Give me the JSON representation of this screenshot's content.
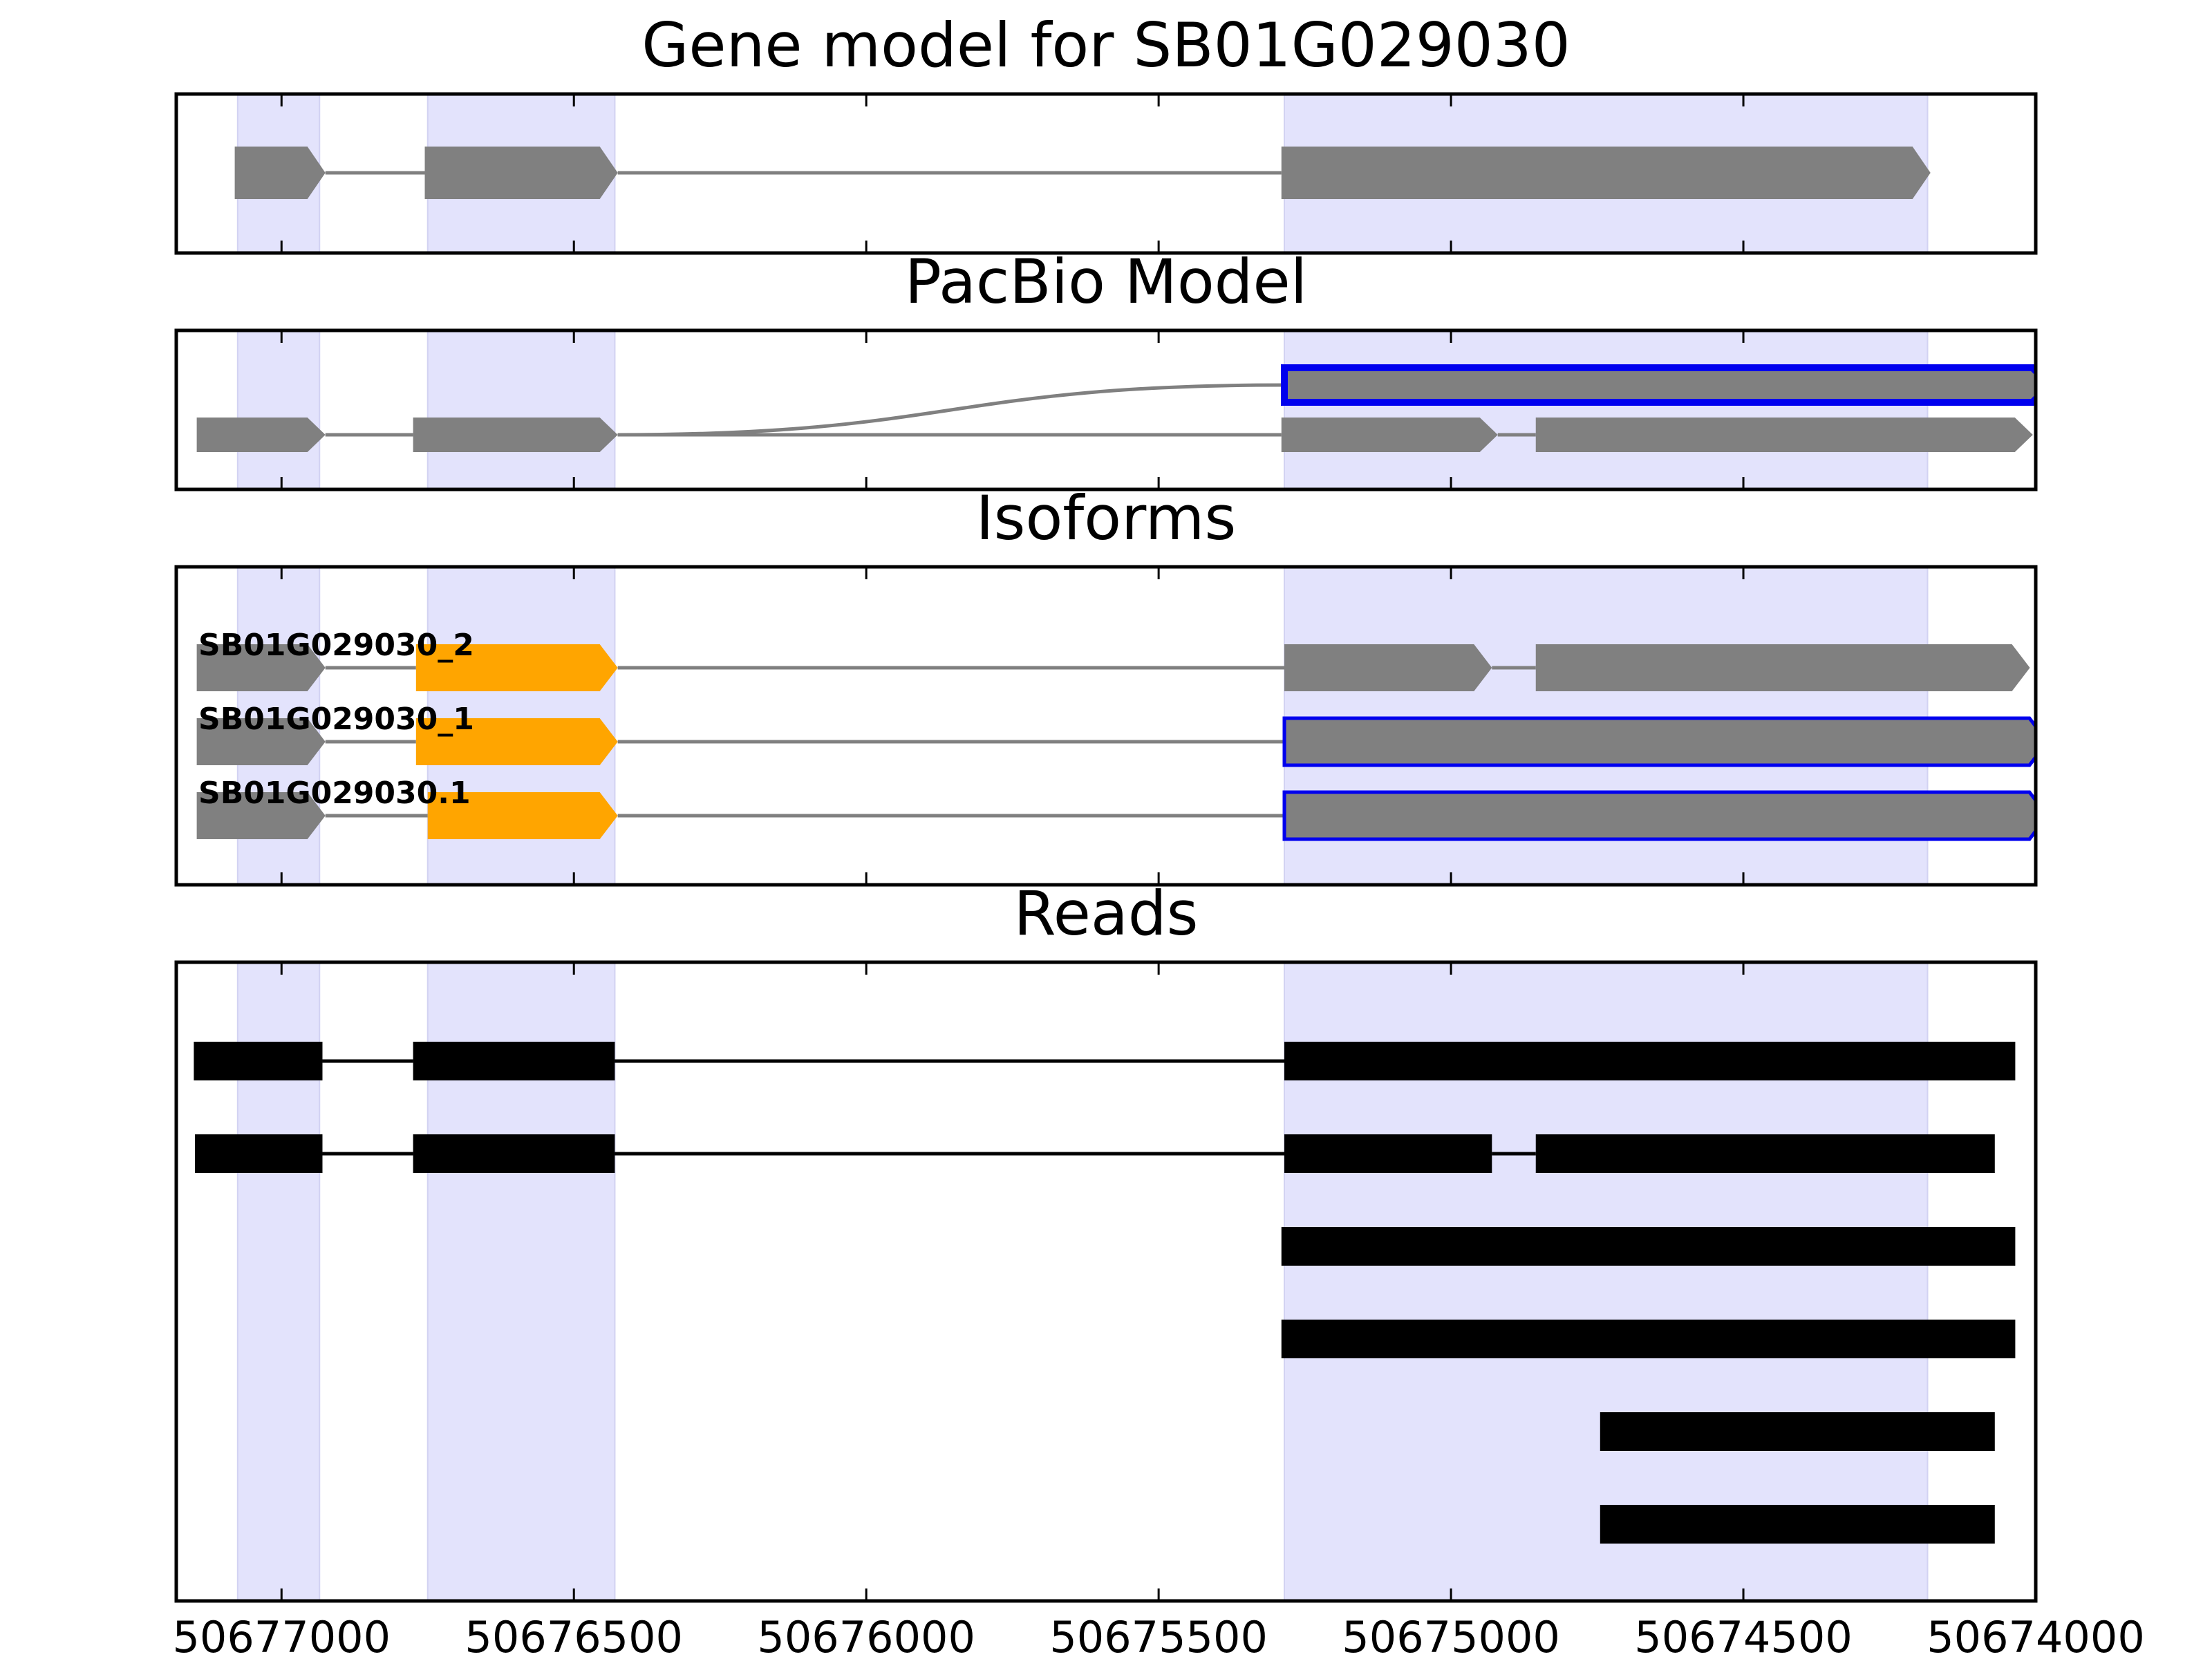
{
  "chart_data": {
    "type": "gene-track",
    "x_axis": {
      "xlim": [
        50677180,
        50674000
      ],
      "reversed": true,
      "ticks": [
        50677000,
        50676500,
        50676000,
        50675500,
        50675000,
        50674500,
        50674000
      ],
      "tick_labels": [
        "50677000",
        "50676500",
        "50676000",
        "50675500",
        "50675000",
        "50674500",
        "50674000"
      ]
    },
    "highlight_regions": [
      [
        50677075,
        50676935
      ],
      [
        50676750,
        50676430
      ],
      [
        50675285,
        50674185
      ]
    ],
    "colors": {
      "exon": "#808080",
      "intron": "#808080",
      "highlight": "#e3e3fc",
      "orange_exon": "#ffa500",
      "selected_outline": "#0000ee",
      "read": "#000000",
      "axes": "#000000"
    },
    "panels": [
      {
        "title": "Gene model for SB01G029030",
        "tracks": [
          {
            "exons": [
              {
                "start": 50677080,
                "end": 50676925
              },
              {
                "start": 50676755,
                "end": 50676425
              },
              {
                "start": 50675290,
                "end": 50674180
              }
            ]
          }
        ]
      },
      {
        "title": "PacBio Model",
        "tracks": [
          {
            "outline": "blue",
            "bumped": true,
            "from_track": 1,
            "exons": [
              {
                "start": 50675285,
                "end": 50673975
              }
            ]
          },
          {
            "exons": [
              {
                "start": 50677145,
                "end": 50676925
              },
              {
                "start": 50676775,
                "end": 50676425
              },
              {
                "start": 50675290,
                "end": 50674920
              },
              {
                "start": 50674855,
                "end": 50674005
              }
            ]
          }
        ]
      },
      {
        "title": "Isoforms",
        "tracks": [
          {
            "label": "SB01G029030_2",
            "exons": [
              {
                "start": 50677145,
                "end": 50676925
              },
              {
                "start": 50676770,
                "end": 50676425,
                "color": "orange"
              },
              {
                "start": 50675285,
                "end": 50674930
              },
              {
                "start": 50674855,
                "end": 50674010
              }
            ]
          },
          {
            "label": "SB01G029030_1",
            "exons": [
              {
                "start": 50677145,
                "end": 50676925
              },
              {
                "start": 50676770,
                "end": 50676425,
                "color": "orange"
              },
              {
                "start": 50675285,
                "end": 50673980,
                "outline": "blue"
              }
            ]
          },
          {
            "label": "SB01G029030.1",
            "exons": [
              {
                "start": 50677145,
                "end": 50676925
              },
              {
                "start": 50676750,
                "end": 50676425,
                "color": "orange"
              },
              {
                "start": 50675285,
                "end": 50673980,
                "outline": "blue"
              }
            ]
          }
        ]
      },
      {
        "title": "Reads",
        "reads": [
          {
            "blocks": [
              [
                50677150,
                50676930
              ],
              [
                50676775,
                50676430
              ],
              [
                50675285,
                50674035
              ]
            ]
          },
          {
            "blocks": [
              [
                50677148,
                50676930
              ],
              [
                50676775,
                50676430
              ],
              [
                50675285,
                50674930
              ],
              [
                50674855,
                50674070
              ]
            ]
          },
          {
            "blocks": [
              [
                50675290,
                50674035
              ]
            ]
          },
          {
            "blocks": [
              [
                50675290,
                50674035
              ]
            ]
          },
          {
            "blocks": [
              [
                50674745,
                50674070
              ]
            ]
          },
          {
            "blocks": [
              [
                50674745,
                50674070
              ]
            ]
          }
        ]
      }
    ]
  }
}
